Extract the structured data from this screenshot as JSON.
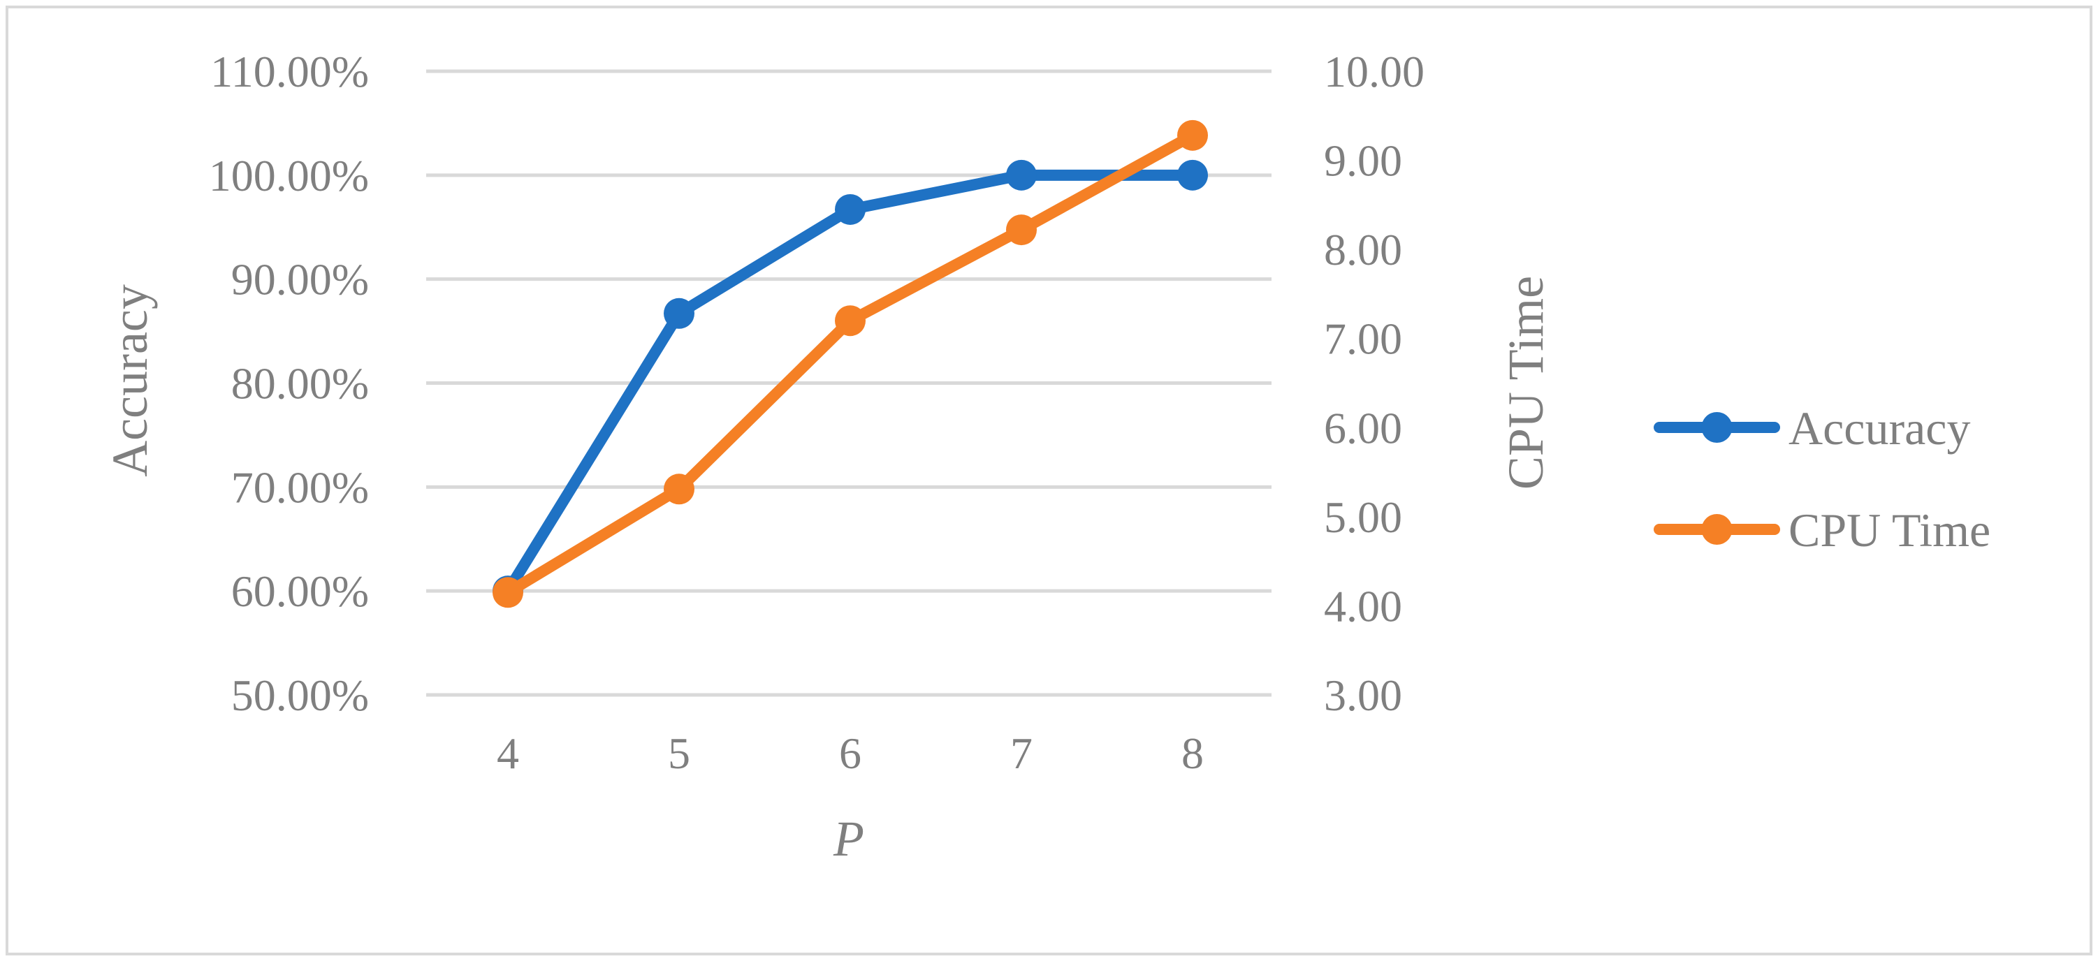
{
  "chart_data": {
    "type": "line",
    "title": "",
    "xlabel": "P",
    "categories": [
      "4",
      "5",
      "6",
      "7",
      "8"
    ],
    "y_left": {
      "label": "Accuracy",
      "ticks": [
        "50.00%",
        "60.00%",
        "70.00%",
        "80.00%",
        "90.00%",
        "100.00%",
        "110.00%"
      ],
      "ylim": [
        50,
        110
      ]
    },
    "y_right": {
      "label": "CPU Time",
      "ticks": [
        "3.00",
        "4.00",
        "5.00",
        "6.00",
        "7.00",
        "8.00",
        "9.00",
        "10.00"
      ],
      "ylim": [
        3,
        10
      ]
    },
    "grid": true,
    "legend_position": "right",
    "series": [
      {
        "name": "Accuracy",
        "axis": "left",
        "color": "#1f72c4",
        "values": [
          60.0,
          86.7,
          96.7,
          100.0,
          100.0
        ]
      },
      {
        "name": "CPU Time",
        "axis": "right",
        "color": "#f58025",
        "values": [
          4.15,
          5.31,
          7.2,
          8.22,
          9.28
        ]
      }
    ]
  }
}
